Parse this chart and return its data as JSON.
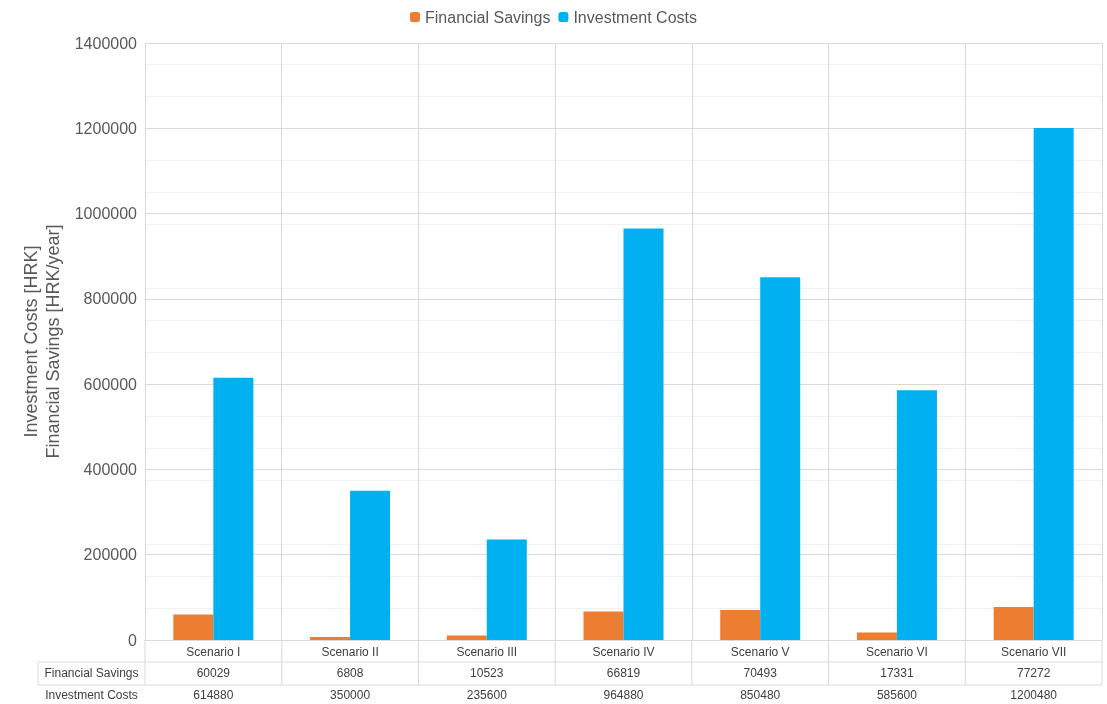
{
  "chart_data": {
    "type": "bar",
    "ylabel": "Investment Costs [HRK]\nFinancial Savings [HRK/year]",
    "categories": [
      "Scenario I",
      "Scenario II",
      "Scenario III",
      "Scenario IV",
      "Scenario V",
      "Scenario VI",
      "Scenario VII"
    ],
    "series": [
      {
        "name": "Financial Savings",
        "color": "#ed7d31",
        "values": [
          60029,
          6808,
          10523,
          66819,
          70493,
          17331,
          77272
        ]
      },
      {
        "name": "Investment Costs",
        "color": "#00b0f0",
        "values": [
          614880,
          350000,
          235600,
          964880,
          850480,
          585600,
          1200480
        ]
      }
    ],
    "ylim": [
      0,
      1400000
    ],
    "yticks": [
      0,
      200000,
      400000,
      600000,
      800000,
      1000000,
      1200000,
      1400000
    ],
    "grid": true,
    "legend": "top",
    "data_labels": true
  }
}
